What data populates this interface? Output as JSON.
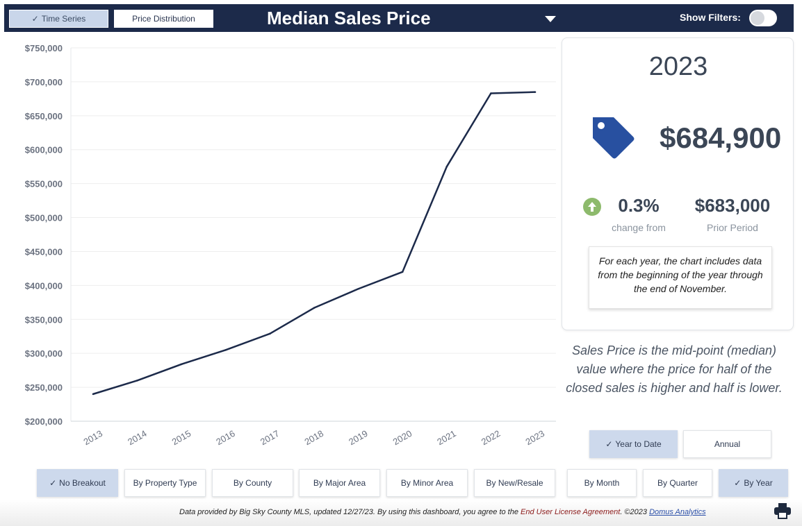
{
  "header": {
    "tab_time_series": "Time Series",
    "tab_price_distribution": "Price Distribution",
    "title": "Median Sales Price",
    "show_filters_label": "Show Filters:",
    "colors": {
      "bar": "#1c2a4a",
      "active_tab": "#c9d6ea"
    }
  },
  "chart_data": {
    "type": "line",
    "x": [
      "2013",
      "2014",
      "2015",
      "2016",
      "2017",
      "2018",
      "2019",
      "2020",
      "2021",
      "2022",
      "2023"
    ],
    "series": [
      {
        "values": [
          240000,
          260000,
          284000,
          305000,
          329000,
          367000,
          395000,
          420000,
          575000,
          683000,
          684900
        ],
        "color": "#1c2a4a"
      }
    ],
    "ylim": [
      200000,
      750000
    ],
    "yticks": [
      "$750,000",
      "$700,000",
      "$650,000",
      "$600,000",
      "$550,000",
      "$500,000",
      "$450,000",
      "$400,000",
      "$350,000",
      "$300,000",
      "$250,000",
      "$200,000"
    ],
    "ytick_values": [
      750000,
      700000,
      650000,
      600000,
      550000,
      500000,
      450000,
      400000,
      350000,
      300000,
      250000,
      200000
    ],
    "grid": true
  },
  "card": {
    "year": "2023",
    "value": "$684,900",
    "change_pct": "0.3%",
    "change_label": "change from",
    "prior_value": "$683,000",
    "prior_label": "Prior Period",
    "note": "For each year, the chart includes data from the beginning of the year through the end of November.",
    "icon_tag": "price-tag-icon",
    "icon_up": "arrow-up-circle-icon",
    "colors": {
      "tag": "#2850a0",
      "up": "#8dba6c"
    }
  },
  "explanation": "Sales Price is the mid-point (median) value where the price for half of the closed sales is higher and half is lower.",
  "period_buttons": {
    "ytd": "Year to Date",
    "annual": "Annual"
  },
  "breakout_buttons": {
    "none": "No Breakout",
    "property_type": "By Property Type",
    "county": "By County",
    "major_area": "By Major Area",
    "minor_area": "By Minor Area",
    "new_resale": "By New/Resale",
    "month": "By Month",
    "quarter": "By Quarter",
    "year": "By Year"
  },
  "footer": {
    "prefix": "Data provided by Big Sky County MLS, updated 12/27/23.  By using this dashboard, you agree to the ",
    "license_link": "End User License Agreement",
    "middle": ".  ©2023 ",
    "company_link": "Domus Analytics",
    "print_icon": "printer-icon"
  }
}
